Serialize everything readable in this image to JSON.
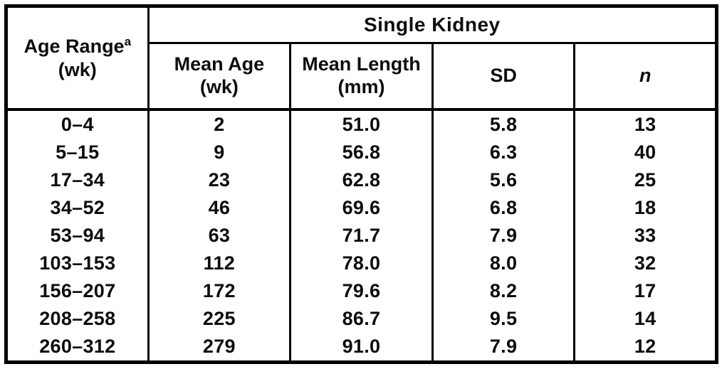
{
  "table": {
    "span_header": "Single Kidney",
    "corner": {
      "title": "Age Range",
      "superscript": "a",
      "unit": "(wk)"
    },
    "columns": [
      {
        "label": "Mean Age",
        "unit": "(wk)"
      },
      {
        "label": "Mean Length",
        "unit": "(mm)"
      },
      {
        "label": "SD",
        "unit": ""
      },
      {
        "label": "n",
        "unit": ""
      }
    ],
    "row_keys": [
      "age_range",
      "mean_age",
      "mean_length",
      "sd",
      "n"
    ],
    "rows": [
      {
        "age_range": "0–4",
        "mean_age": "2",
        "mean_length": "51.0",
        "sd": "5.8",
        "n": "13"
      },
      {
        "age_range": "5–15",
        "mean_age": "9",
        "mean_length": "56.8",
        "sd": "6.3",
        "n": "40"
      },
      {
        "age_range": "17–34",
        "mean_age": "23",
        "mean_length": "62.8",
        "sd": "5.6",
        "n": "25"
      },
      {
        "age_range": "34–52",
        "mean_age": "46",
        "mean_length": "69.6",
        "sd": "6.8",
        "n": "18"
      },
      {
        "age_range": "53–94",
        "mean_age": "63",
        "mean_length": "71.7",
        "sd": "7.9",
        "n": "33"
      },
      {
        "age_range": "103–153",
        "mean_age": "112",
        "mean_length": "78.0",
        "sd": "8.0",
        "n": "32"
      },
      {
        "age_range": "156–207",
        "mean_age": "172",
        "mean_length": "79.6",
        "sd": "8.2",
        "n": "17"
      },
      {
        "age_range": "208–258",
        "mean_age": "225",
        "mean_length": "86.7",
        "sd": "9.5",
        "n": "14"
      },
      {
        "age_range": "260–312",
        "mean_age": "279",
        "mean_length": "91.0",
        "sd": "7.9",
        "n": "12"
      }
    ]
  },
  "colors": {
    "border": "#000000",
    "background": "#ffffff",
    "text": "#0d0d0d"
  }
}
